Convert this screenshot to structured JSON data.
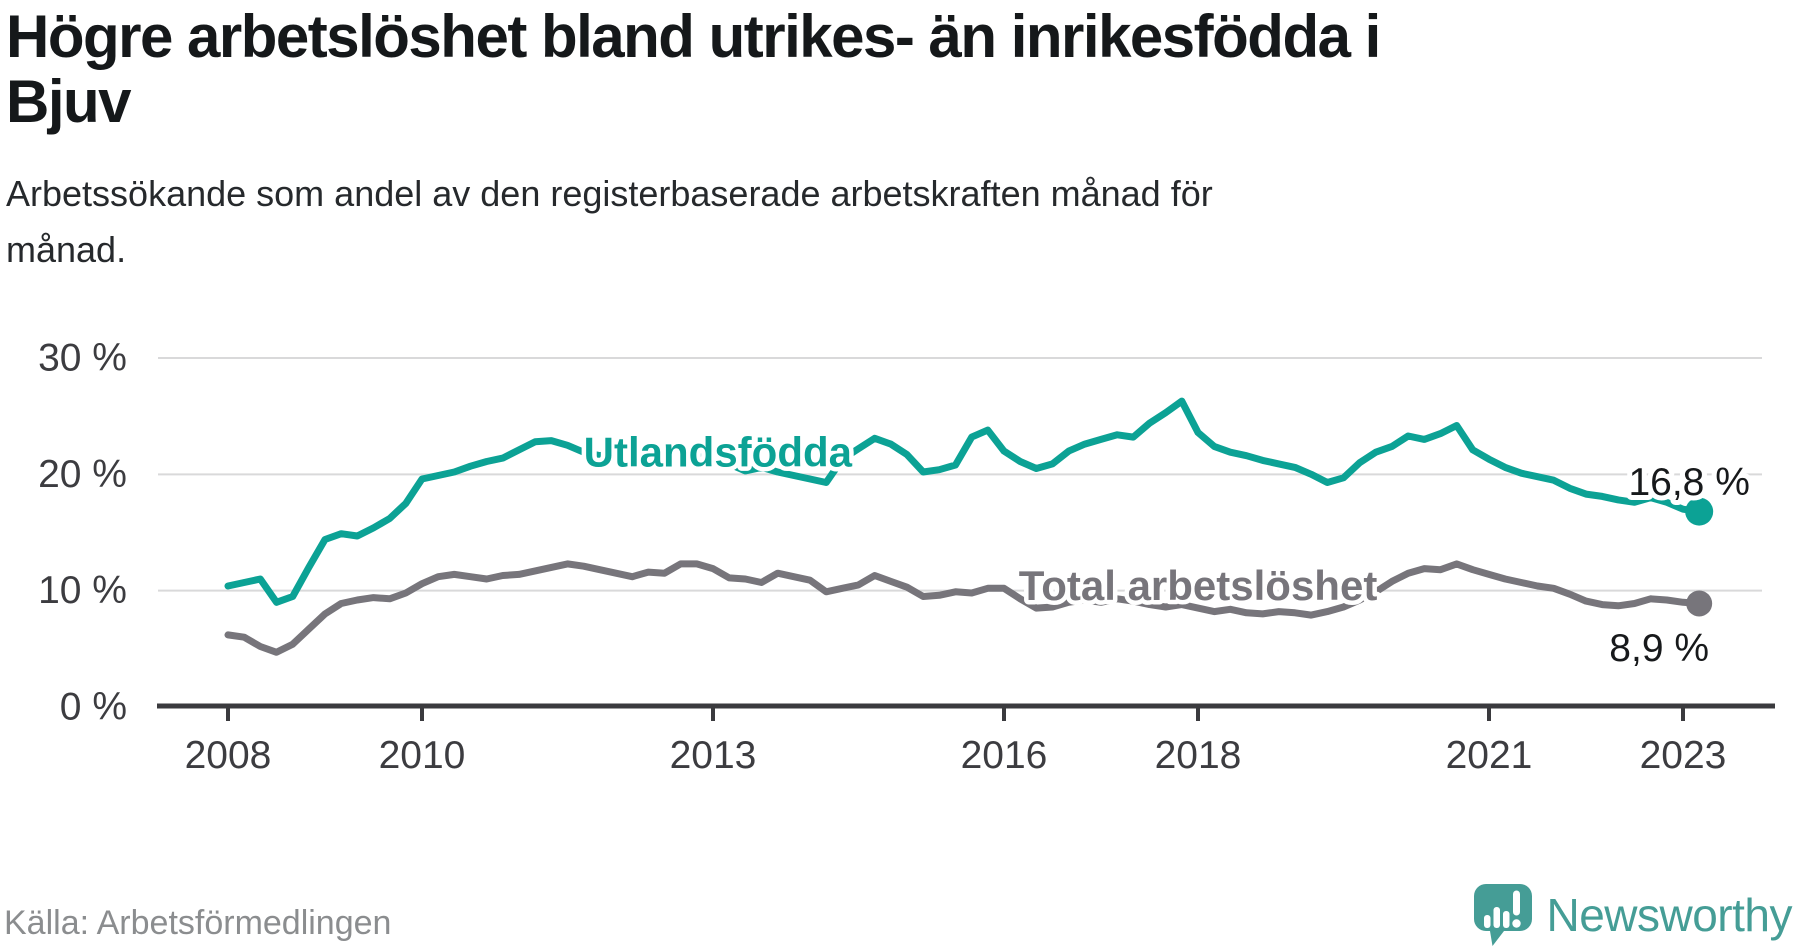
{
  "header": {
    "title": "Högre arbetslöshet bland utrikes- än inrikesfödda i Bjuv",
    "title_lines": [
      "Högre arbetslöshet bland utrikes- än inrikesfödda i",
      "Bjuv"
    ],
    "subtitle": "Arbetssökande som andel av den registerbaserade arbetskraften månad för månad.",
    "subtitle_lines": [
      "Arbetssökande som andel av den registerbaserade arbetskraften månad för",
      "månad."
    ]
  },
  "footer": {
    "source": "Källa: Arbetsförmedlingen",
    "brand": "Newsworthy",
    "brand_color": "#459D96",
    "logo_icon": "newsworthy-speech-bubble-chart-icon"
  },
  "chart_data": {
    "type": "line",
    "title": "Högre arbetslöshet bland utrikes- än inrikesfödda i Bjuv",
    "subtitle": "Arbetssökande som andel av den registerbaserade arbetskraften månad för månad.",
    "unit": "%",
    "grid": true,
    "legend_position": "inline-labels",
    "x_axis": {
      "start_year": 2008,
      "end_year": 2023.17,
      "tick_years": [
        2008,
        2010,
        2013,
        2016,
        2018,
        2021,
        2023
      ]
    },
    "y_axis": {
      "ticks": [
        30,
        20,
        10,
        0
      ],
      "suffix": " %",
      "range": [
        0,
        30
      ]
    },
    "sampling": {
      "start_year": 2008.0,
      "step_months": 2
    },
    "colors": {
      "grid": "#D9D9DA",
      "axis": "#3A3A3E",
      "tick_label": "#3C3C40",
      "end_label": "#17191B",
      "halo": "#FFFFFF"
    },
    "series": [
      {
        "name": "Utlandsfödda",
        "color": "#0CA295",
        "end_label": "16,8 %",
        "end_value": 16.8,
        "label_pos": {
          "year": 2013.05,
          "value": 21.9
        },
        "values": [
          10.4,
          10.7,
          11.0,
          9.0,
          9.5,
          12.0,
          14.4,
          14.9,
          14.7,
          15.4,
          16.2,
          17.5,
          19.6,
          19.9,
          20.2,
          20.7,
          21.1,
          21.4,
          22.1,
          22.8,
          22.9,
          22.5,
          21.9,
          21.6,
          21.9,
          21.6,
          22.0,
          22.3,
          21.9,
          21.6,
          21.4,
          20.9,
          20.3,
          20.6,
          20.2,
          19.9,
          19.6,
          19.3,
          21.3,
          22.2,
          23.1,
          22.6,
          21.7,
          20.2,
          20.4,
          20.8,
          23.2,
          23.8,
          22.0,
          21.1,
          20.5,
          20.9,
          22.0,
          22.6,
          23.0,
          23.4,
          23.2,
          24.4,
          25.3,
          26.3,
          23.6,
          22.4,
          21.9,
          21.6,
          21.2,
          20.9,
          20.6,
          20.0,
          19.3,
          19.7,
          21.0,
          21.9,
          22.4,
          23.3,
          23.0,
          23.5,
          24.2,
          22.1,
          21.3,
          20.6,
          20.1,
          19.8,
          19.5,
          18.8,
          18.3,
          18.1,
          17.8,
          17.6,
          18.0,
          17.6,
          17.0,
          16.8
        ]
      },
      {
        "name": "Total arbetslöshet",
        "color": "#77757B",
        "end_label": "8,9 %",
        "end_value": 8.9,
        "label_pos": {
          "year": 2018.0,
          "value": 10.45
        },
        "values": [
          6.2,
          6.0,
          5.2,
          4.7,
          5.4,
          6.7,
          8.0,
          8.9,
          9.2,
          9.4,
          9.3,
          9.8,
          10.6,
          11.2,
          11.4,
          11.2,
          11.0,
          11.3,
          11.4,
          11.7,
          12.0,
          12.3,
          12.1,
          11.8,
          11.5,
          11.2,
          11.6,
          11.5,
          12.3,
          12.3,
          11.9,
          11.1,
          11.0,
          10.7,
          11.5,
          11.2,
          10.9,
          9.9,
          10.2,
          10.5,
          11.3,
          10.8,
          10.3,
          9.5,
          9.6,
          9.9,
          9.8,
          10.2,
          10.2,
          9.3,
          8.5,
          8.6,
          9.0,
          9.2,
          9.0,
          9.3,
          9.1,
          8.8,
          8.6,
          8.8,
          8.5,
          8.2,
          8.4,
          8.1,
          8.0,
          8.2,
          8.1,
          7.9,
          8.2,
          8.6,
          9.2,
          9.9,
          10.8,
          11.5,
          11.9,
          11.8,
          12.3,
          11.8,
          11.4,
          11.0,
          10.7,
          10.4,
          10.2,
          9.7,
          9.1,
          8.8,
          8.7,
          8.9,
          9.3,
          9.2,
          9.0,
          8.9
        ]
      }
    ]
  }
}
